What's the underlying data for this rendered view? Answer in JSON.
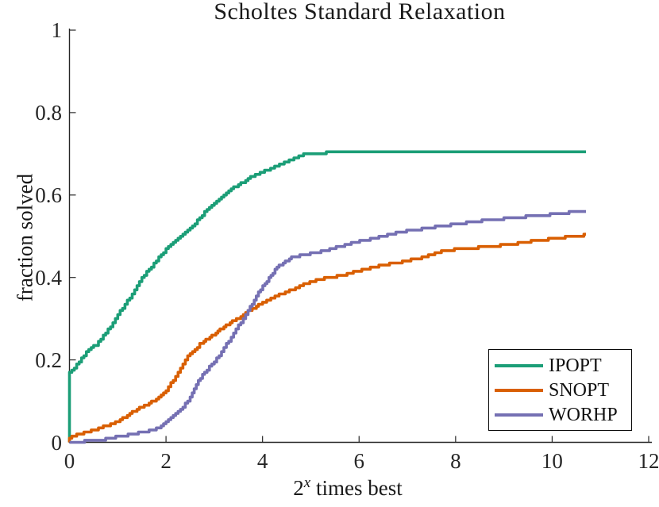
{
  "title": "Scholtes Standard Relaxation",
  "axes": {
    "ylabel": "fraction solved",
    "xlabel_base": "2",
    "xlabel_sup": "x",
    "xlabel_rest": " times best"
  },
  "colors": {
    "background": "#ffffff",
    "axis": "#262626",
    "text": "#1a1a1a",
    "legend_border": "#0a0a0a",
    "ipopt": "#1b9e77",
    "snopt": "#d95f02",
    "worhp": "#7570b3"
  },
  "chart_data": {
    "type": "line",
    "title": "Scholtes Standard Relaxation",
    "xlabel": "2^x times best",
    "ylabel": "fraction solved",
    "xlim": [
      0,
      12
    ],
    "ylim": [
      0,
      1
    ],
    "xticks": [
      0,
      2,
      4,
      6,
      8,
      10,
      12
    ],
    "yticks": [
      0,
      0.2,
      0.4,
      0.6,
      0.8,
      1
    ],
    "grid": false,
    "legend_position": "lower right",
    "curve_style": "empirical-cdf-staircase",
    "series": [
      {
        "name": "IPOPT",
        "color": "#1b9e77",
        "points": [
          [
            0,
            0
          ],
          [
            0,
            0.168
          ],
          [
            0.2,
            0.196
          ],
          [
            0.4,
            0.225
          ],
          [
            0.55,
            0.237
          ],
          [
            0.7,
            0.26
          ],
          [
            0.85,
            0.282
          ],
          [
            1.0,
            0.31
          ],
          [
            1.15,
            0.335
          ],
          [
            1.3,
            0.36
          ],
          [
            1.5,
            0.4
          ],
          [
            1.65,
            0.42
          ],
          [
            1.8,
            0.442
          ],
          [
            2.0,
            0.468
          ],
          [
            2.2,
            0.49
          ],
          [
            2.4,
            0.512
          ],
          [
            2.6,
            0.532
          ],
          [
            2.8,
            0.558
          ],
          [
            3.0,
            0.58
          ],
          [
            3.2,
            0.6
          ],
          [
            3.4,
            0.618
          ],
          [
            3.6,
            0.632
          ],
          [
            3.8,
            0.646
          ],
          [
            4.0,
            0.656
          ],
          [
            4.25,
            0.668
          ],
          [
            4.45,
            0.678
          ],
          [
            4.65,
            0.69
          ],
          [
            4.85,
            0.698
          ],
          [
            5.1,
            0.702
          ],
          [
            5.5,
            0.703
          ],
          [
            10.1,
            0.703
          ],
          [
            10.25,
            0.705
          ],
          [
            10.7,
            0.705
          ]
        ]
      },
      {
        "name": "SNOPT",
        "color": "#d95f02",
        "points": [
          [
            0,
            0
          ],
          [
            0,
            0.012
          ],
          [
            0.2,
            0.02
          ],
          [
            0.4,
            0.027
          ],
          [
            0.6,
            0.033
          ],
          [
            0.8,
            0.042
          ],
          [
            1.0,
            0.052
          ],
          [
            1.2,
            0.065
          ],
          [
            1.4,
            0.08
          ],
          [
            1.6,
            0.09
          ],
          [
            1.8,
            0.105
          ],
          [
            2.0,
            0.125
          ],
          [
            2.2,
            0.16
          ],
          [
            2.4,
            0.202
          ],
          [
            2.55,
            0.22
          ],
          [
            2.7,
            0.238
          ],
          [
            2.95,
            0.258
          ],
          [
            3.2,
            0.28
          ],
          [
            3.5,
            0.302
          ],
          [
            3.7,
            0.318
          ],
          [
            4.0,
            0.34
          ],
          [
            4.3,
            0.356
          ],
          [
            4.6,
            0.37
          ],
          [
            4.85,
            0.383
          ],
          [
            5.15,
            0.395
          ],
          [
            5.5,
            0.402
          ],
          [
            5.75,
            0.408
          ],
          [
            6.1,
            0.42
          ],
          [
            6.5,
            0.43
          ],
          [
            6.85,
            0.437
          ],
          [
            7.3,
            0.448
          ],
          [
            7.75,
            0.465
          ],
          [
            8.2,
            0.47
          ],
          [
            8.7,
            0.475
          ],
          [
            9.2,
            0.481
          ],
          [
            9.7,
            0.49
          ],
          [
            10.1,
            0.495
          ],
          [
            10.4,
            0.5
          ],
          [
            10.7,
            0.503
          ]
        ]
      },
      {
        "name": "WORHP",
        "color": "#7570b3",
        "points": [
          [
            0,
            0
          ],
          [
            0.45,
            0.004
          ],
          [
            0.75,
            0.008
          ],
          [
            1.0,
            0.014
          ],
          [
            1.3,
            0.02
          ],
          [
            1.6,
            0.027
          ],
          [
            1.8,
            0.033
          ],
          [
            2.0,
            0.05
          ],
          [
            2.2,
            0.07
          ],
          [
            2.35,
            0.085
          ],
          [
            2.5,
            0.11
          ],
          [
            2.67,
            0.148
          ],
          [
            2.8,
            0.17
          ],
          [
            2.95,
            0.191
          ],
          [
            3.1,
            0.21
          ],
          [
            3.2,
            0.231
          ],
          [
            3.35,
            0.255
          ],
          [
            3.5,
            0.283
          ],
          [
            3.7,
            0.318
          ],
          [
            3.87,
            0.356
          ],
          [
            4.05,
            0.385
          ],
          [
            4.3,
            0.425
          ],
          [
            4.6,
            0.448
          ],
          [
            4.9,
            0.456
          ],
          [
            5.3,
            0.465
          ],
          [
            5.75,
            0.48
          ],
          [
            6.1,
            0.49
          ],
          [
            6.5,
            0.5
          ],
          [
            6.85,
            0.511
          ],
          [
            7.3,
            0.518
          ],
          [
            7.9,
            0.528
          ],
          [
            8.5,
            0.537
          ],
          [
            9.0,
            0.543
          ],
          [
            9.5,
            0.548
          ],
          [
            10.0,
            0.553
          ],
          [
            10.35,
            0.558
          ],
          [
            10.7,
            0.562
          ]
        ]
      }
    ]
  }
}
